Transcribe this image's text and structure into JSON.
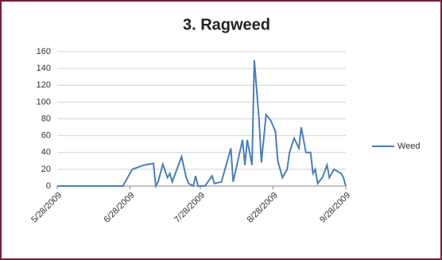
{
  "chart_data": {
    "type": "line",
    "title": "3. Ragweed",
    "x": [
      "5/28/2009",
      "6/25/2009",
      "6/29/2009",
      "7/4/2009",
      "7/8/2009",
      "7/9/2009",
      "7/10/2009",
      "7/12/2009",
      "7/14/2009",
      "7/15/2009",
      "7/16/2009",
      "7/18/2009",
      "7/20/2009",
      "7/22/2009",
      "7/23/2009",
      "7/25/2009",
      "7/26/2009",
      "7/27/2009",
      "7/30/2009",
      "8/2/2009",
      "8/3/2009",
      "8/6/2009",
      "8/8/2009",
      "8/10/2009",
      "8/11/2009",
      "8/13/2009",
      "8/15/2009",
      "8/16/2009",
      "8/17/2009",
      "8/19/2009",
      "8/20/2009",
      "8/22/2009",
      "8/23/2009",
      "8/25/2009",
      "8/27/2009",
      "8/29/2009",
      "8/30/2009",
      "9/1/2009",
      "9/3/2009",
      "9/4/2009",
      "9/6/2009",
      "9/8/2009",
      "9/9/2009",
      "9/10/2009",
      "9/11/2009",
      "9/13/2009",
      "9/14/2009",
      "9/15/2009",
      "9/16/2009",
      "9/18/2009",
      "9/20/2009",
      "9/21/2009",
      "9/23/2009",
      "9/26/2009",
      "9/27/2009",
      "9/28/2009"
    ],
    "series": [
      {
        "name": "Weed",
        "color": "#4a7ebb",
        "values": [
          0,
          0,
          20,
          25,
          27,
          0,
          5,
          26,
          10,
          15,
          5,
          20,
          35,
          10,
          3,
          0,
          12,
          0,
          0,
          12,
          3,
          5,
          25,
          45,
          5,
          30,
          55,
          25,
          55,
          25,
          150,
          80,
          28,
          85,
          78,
          65,
          30,
          10,
          20,
          40,
          57,
          45,
          70,
          55,
          40,
          40,
          15,
          20,
          3,
          10,
          25,
          10,
          20,
          15,
          10,
          0
        ]
      }
    ],
    "xlim": [
      "5/28/2009",
      "9/28/2009"
    ],
    "xticks": [
      "5/28/2009",
      "6/28/2009",
      "7/28/2009",
      "8/28/2009",
      "9/28/2009"
    ],
    "ylim": [
      0,
      160
    ],
    "yticks": [
      0,
      20,
      40,
      60,
      80,
      100,
      120,
      140,
      160
    ],
    "grid": true,
    "legend": "right"
  }
}
